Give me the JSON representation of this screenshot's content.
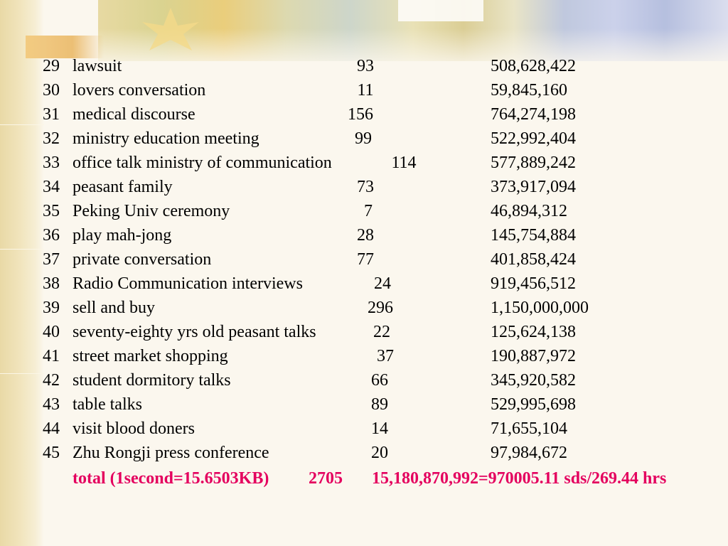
{
  "rows": [
    {
      "num": "29",
      "name": "lawsuit",
      "count": "93",
      "size": "508,628,422"
    },
    {
      "num": "30",
      "name": "lovers conversation",
      "count": "11",
      "size": "59,845,160"
    },
    {
      "num": "31",
      "name": "medical discourse",
      "count": "156",
      "size": "764,274,198"
    },
    {
      "num": "32",
      "name": "ministry education meeting",
      "count": "99",
      "size": "522,992,404"
    },
    {
      "num": "33",
      "name": "office talk ministry of communication",
      "count": "114",
      "size": "577,889,242"
    },
    {
      "num": "34",
      "name": "peasant family",
      "count": "73",
      "size": "373,917,094"
    },
    {
      "num": "35",
      "name": "Peking Univ ceremony",
      "count": "7",
      "size": "46,894,312"
    },
    {
      "num": "36",
      "name": "play mah-jong",
      "count": "28",
      "size": "145,754,884"
    },
    {
      "num": "37",
      "name": "private conversation",
      "count": "77",
      "size": "401,858,424"
    },
    {
      "num": "38",
      "name": "Radio Communication interviews",
      "count": "24",
      "size": "919,456,512"
    },
    {
      "num": "39",
      "name": "sell and buy",
      "count": "296",
      "size": "1,150,000,000"
    },
    {
      "num": "40",
      "name": "seventy-eighty yrs old peasant talks",
      "count": "22",
      "size": "125,624,138"
    },
    {
      "num": "41",
      "name": "street market shopping",
      "count": "37",
      "size": "190,887,972"
    },
    {
      "num": "42",
      "name": "student dormitory talks",
      "count": "66",
      "size": "345,920,582"
    },
    {
      "num": "43",
      "name": "table talks",
      "count": "89",
      "size": "529,995,698"
    },
    {
      "num": "44",
      "name": "visit blood doners",
      "count": "14",
      "size": "71,655,104"
    },
    {
      "num": "45",
      "name": "Zhu Rongji press conference",
      "count": "20",
      "size": "97,984,672"
    }
  ],
  "total": {
    "label": "total (1second=15.6503KB)",
    "count": "2705",
    "summary": "15,180,870,992=970005.11 sds/269.44 hrs"
  },
  "colors": {
    "total_text": "#e4005e",
    "body_text": "#000000"
  }
}
